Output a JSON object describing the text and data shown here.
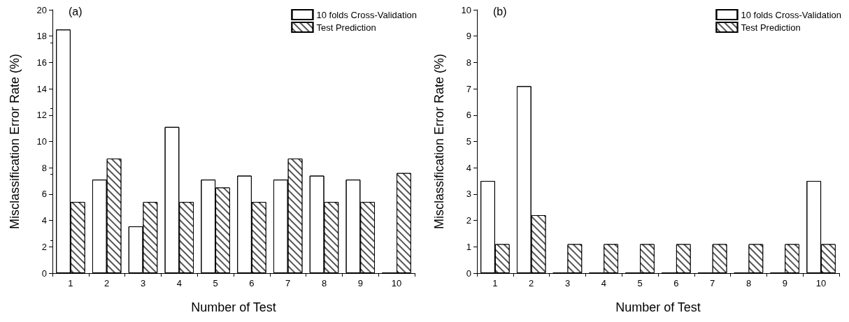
{
  "chart_data": [
    {
      "type": "bar",
      "xlabel": "Number of Test",
      "ylabel": "Misclassification Error Rate (%)",
      "annotations": [
        "(a)"
      ],
      "categories": [
        "1",
        "2",
        "3",
        "4",
        "5",
        "6",
        "7",
        "8",
        "9",
        "10"
      ],
      "series": [
        {
          "name": "10 folds Cross-Validation",
          "color": "#ffffff",
          "values": [
            18.5,
            7.1,
            3.55,
            11.1,
            7.1,
            7.4,
            7.1,
            7.4,
            7.1,
            0
          ]
        },
        {
          "name": "Test Prediction",
          "color": "#555555",
          "values": [
            5.4,
            8.7,
            5.4,
            5.4,
            6.5,
            5.4,
            8.7,
            5.4,
            5.4,
            7.6
          ]
        }
      ],
      "ylim": [
        0,
        20
      ],
      "yticks": [
        0,
        2,
        4,
        6,
        8,
        10,
        12,
        14,
        16,
        18,
        20
      ],
      "grid": false,
      "legend": "top right"
    },
    {
      "type": "bar",
      "xlabel": "Number of Test",
      "ylabel": "Misclassification Error Rate (%)",
      "annotations": [
        "(b)"
      ],
      "categories": [
        "1",
        "2",
        "3",
        "4",
        "5",
        "6",
        "7",
        "8",
        "9",
        "10"
      ],
      "series": [
        {
          "name": "10 folds Cross-Validation",
          "color": "#ffffff",
          "values": [
            3.5,
            7.1,
            0,
            0,
            0,
            0,
            0,
            0,
            0,
            3.5
          ]
        },
        {
          "name": "Test Prediction",
          "color": "#555555",
          "values": [
            1.1,
            2.2,
            1.1,
            1.1,
            1.1,
            1.1,
            1.1,
            1.1,
            1.1,
            1.1
          ]
        }
      ],
      "ylim": [
        0,
        10
      ],
      "yticks": [
        0,
        1,
        2,
        3,
        4,
        5,
        6,
        7,
        8,
        9,
        10
      ],
      "grid": false,
      "legend": "top right"
    }
  ]
}
